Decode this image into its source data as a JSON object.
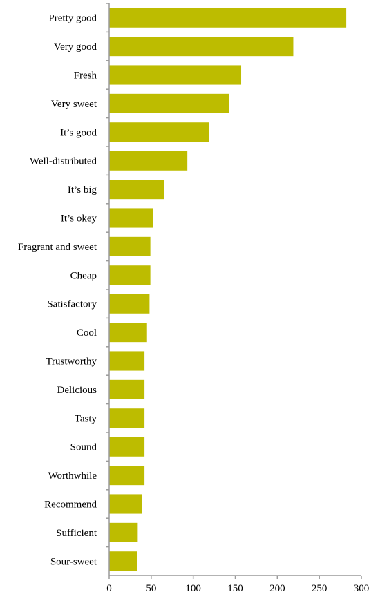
{
  "chart_data": {
    "type": "bar",
    "orientation": "horizontal",
    "categories": [
      "Pretty good",
      "Very good",
      "Fresh",
      "Very sweet",
      "It’s good",
      "Well-distributed",
      "It’s big",
      "It’s okey",
      "Fragrant and sweet",
      "Cheap",
      "Satisfactory",
      "Cool",
      "Trustworthy",
      "Delicious",
      "Tasty",
      "Sound",
      "Worthwhile",
      "Recommend",
      "Sufficient",
      "Sour-sweet"
    ],
    "values": [
      282,
      219,
      157,
      143,
      119,
      93,
      65,
      52,
      49,
      49,
      48,
      45,
      42,
      42,
      42,
      42,
      42,
      39,
      34,
      33
    ],
    "xlim": [
      0,
      300
    ],
    "xticks": [
      0,
      50,
      100,
      150,
      200,
      250,
      300
    ],
    "title": "",
    "xlabel": "",
    "ylabel": "",
    "grid": false,
    "legend": "none",
    "bar_color": "#bdbc00",
    "axis_color": "#9a9a9a"
  }
}
